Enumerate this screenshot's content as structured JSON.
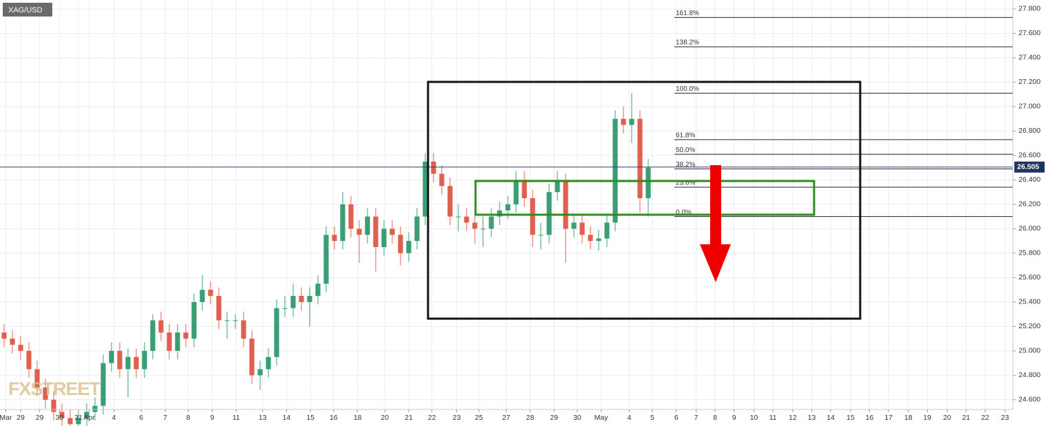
{
  "chart_data": {
    "type": "candlestick",
    "symbol": "XAG/USD",
    "watermark": "FXSTREET",
    "open": [
      25.15,
      25.1,
      25.05,
      25.0,
      24.85,
      24.7,
      24.6,
      24.5,
      24.45,
      24.4,
      24.45,
      24.5,
      24.55,
      24.9,
      25.0,
      24.85,
      24.95,
      24.85,
      25.0,
      25.25,
      25.15,
      25.0,
      25.15,
      25.1,
      25.4,
      25.5,
      25.45,
      25.25,
      25.25,
      25.25,
      25.1,
      24.8,
      24.85,
      24.95,
      25.35,
      25.35,
      25.45,
      25.4,
      25.45,
      25.55,
      25.95,
      25.9,
      26.2,
      26.0,
      25.95,
      26.1,
      25.85,
      26.0,
      25.95,
      25.8,
      25.9,
      26.1,
      26.55,
      26.45,
      26.35,
      26.1,
      26.1,
      26.05,
      26.0,
      26.0,
      26.1,
      26.15,
      26.2,
      26.4,
      26.25,
      25.95,
      25.95,
      26.3,
      26.4,
      26.0,
      26.05,
      25.95,
      25.9,
      25.92,
      26.05,
      26.9,
      26.85,
      26.9,
      26.25
    ],
    "high": [
      25.22,
      25.17,
      25.12,
      25.07,
      24.92,
      24.77,
      24.67,
      24.57,
      24.52,
      24.52,
      24.57,
      24.62,
      24.97,
      25.07,
      25.07,
      25.02,
      25.02,
      25.07,
      25.3,
      25.32,
      25.22,
      25.22,
      25.22,
      25.47,
      25.62,
      25.57,
      25.52,
      25.32,
      25.3,
      25.32,
      25.17,
      24.92,
      25.02,
      25.42,
      25.45,
      25.55,
      25.52,
      25.52,
      25.62,
      26.02,
      26.02,
      26.3,
      26.27,
      26.07,
      26.17,
      26.17,
      26.07,
      26.07,
      26.02,
      25.97,
      26.17,
      26.62,
      26.62,
      26.52,
      26.42,
      26.2,
      26.17,
      26.12,
      26.1,
      26.17,
      26.22,
      26.27,
      26.47,
      26.47,
      26.32,
      26.05,
      26.37,
      26.47,
      26.45,
      26.12,
      26.12,
      26.02,
      25.99,
      26.12,
      26.97,
      27.0,
      27.11,
      26.97,
      26.57
    ],
    "low": [
      25.03,
      24.98,
      24.93,
      24.78,
      24.63,
      24.53,
      24.43,
      24.38,
      24.33,
      24.33,
      24.38,
      24.43,
      24.48,
      24.83,
      24.78,
      24.62,
      24.78,
      24.78,
      24.93,
      25.08,
      24.93,
      24.93,
      25.03,
      25.03,
      25.33,
      25.38,
      25.18,
      25.1,
      25.18,
      25.03,
      24.73,
      24.68,
      24.78,
      24.88,
      25.28,
      25.28,
      25.33,
      25.2,
      25.38,
      25.48,
      25.83,
      25.83,
      25.93,
      25.72,
      25.88,
      25.65,
      25.78,
      25.88,
      25.7,
      25.73,
      25.83,
      26.03,
      26.38,
      26.28,
      26.03,
      25.98,
      25.98,
      25.88,
      25.85,
      25.93,
      26.03,
      26.08,
      26.13,
      26.18,
      25.85,
      25.83,
      25.88,
      26.23,
      25.72,
      25.93,
      25.88,
      25.83,
      25.82,
      25.85,
      25.98,
      26.78,
      26.7,
      26.13,
      26.1
    ],
    "close": [
      25.1,
      25.05,
      25.0,
      24.85,
      24.7,
      24.6,
      24.5,
      24.45,
      24.4,
      24.45,
      24.5,
      24.55,
      24.9,
      25.0,
      24.85,
      24.95,
      24.85,
      25.0,
      25.25,
      25.15,
      25.0,
      25.15,
      25.1,
      25.4,
      25.5,
      25.45,
      25.25,
      25.25,
      25.25,
      25.1,
      24.8,
      24.85,
      24.95,
      25.35,
      25.35,
      25.45,
      25.4,
      25.45,
      25.55,
      25.95,
      25.9,
      26.2,
      26.0,
      25.95,
      26.1,
      25.85,
      26.0,
      25.95,
      25.8,
      25.9,
      26.1,
      26.55,
      26.45,
      26.35,
      26.1,
      26.1,
      26.05,
      26.0,
      26.0,
      26.1,
      26.15,
      26.2,
      26.4,
      26.25,
      25.95,
      25.95,
      26.3,
      26.4,
      26.0,
      26.05,
      25.95,
      25.9,
      25.92,
      26.05,
      26.9,
      26.85,
      26.9,
      26.25,
      26.5
    ],
    "up_color": "#3a9e74",
    "down_color": "#e0604f",
    "current_price": 26.505,
    "fib_levels": [
      {
        "label": "161.8%",
        "value": 27.73
      },
      {
        "label": "138.2%",
        "value": 27.49
      },
      {
        "label": "100.0%",
        "value": 27.11
      },
      {
        "label": "61.8%",
        "value": 26.73
      },
      {
        "label": "50.0%",
        "value": 26.61
      },
      {
        "label": "38.2%",
        "value": 26.49
      },
      {
        "label": "23.6%",
        "value": 26.34
      },
      {
        "label": "0.0%",
        "value": 26.1
      }
    ],
    "ylim": [
      24.52,
      27.873
    ],
    "yticks": [
      {
        "value": 24.6,
        "label": "24.600"
      },
      {
        "value": 24.8,
        "label": "24.800"
      },
      {
        "value": 25.0,
        "label": "25.000"
      },
      {
        "value": 25.2,
        "label": "25.200"
      },
      {
        "value": 25.4,
        "label": "25.400"
      },
      {
        "value": 25.6,
        "label": "25.600"
      },
      {
        "value": 25.8,
        "label": "25.800"
      },
      {
        "value": 26.0,
        "label": "26.000"
      },
      {
        "value": 26.2,
        "label": "26.200"
      },
      {
        "value": 26.4,
        "label": "26.400"
      },
      {
        "value": 26.6,
        "label": "26.600"
      },
      {
        "value": 26.8,
        "label": "26.800"
      },
      {
        "value": 27.0,
        "label": "27.000"
      },
      {
        "value": 27.2,
        "label": "27.200"
      },
      {
        "value": 27.4,
        "label": "27.400"
      },
      {
        "value": 27.6,
        "label": "27.600"
      },
      {
        "value": 27.8,
        "label": "27.800"
      }
    ],
    "xlim": [
      -0.5,
      122.17
    ],
    "xticks": [
      {
        "value": 0.2,
        "label": "Mar"
      },
      {
        "value": 2,
        "label": "29"
      },
      {
        "value": 4.3,
        "label": "29"
      },
      {
        "value": 6.7,
        "label": "30"
      },
      {
        "value": 9,
        "label": "31"
      },
      {
        "value": 10.3,
        "label": "Apr"
      },
      {
        "value": 13.3,
        "label": "4"
      },
      {
        "value": 16.6,
        "label": "6"
      },
      {
        "value": 19.5,
        "label": "7"
      },
      {
        "value": 22.3,
        "label": "8"
      },
      {
        "value": 25.2,
        "label": "9"
      },
      {
        "value": 28.1,
        "label": "11"
      },
      {
        "value": 31.3,
        "label": "13"
      },
      {
        "value": 34.2,
        "label": "14"
      },
      {
        "value": 37.1,
        "label": "15"
      },
      {
        "value": 39.9,
        "label": "16"
      },
      {
        "value": 42.8,
        "label": "18"
      },
      {
        "value": 46.1,
        "label": "20"
      },
      {
        "value": 49,
        "label": "21"
      },
      {
        "value": 51.8,
        "label": "22"
      },
      {
        "value": 54.8,
        "label": "23"
      },
      {
        "value": 57.5,
        "label": "25"
      },
      {
        "value": 60.8,
        "label": "27"
      },
      {
        "value": 63.7,
        "label": "28"
      },
      {
        "value": 66.6,
        "label": "29"
      },
      {
        "value": 69.4,
        "label": "30"
      },
      {
        "value": 72.3,
        "label": "May"
      },
      {
        "value": 75.7,
        "label": "4"
      },
      {
        "value": 78.5,
        "label": "5"
      },
      {
        "value": 81.4,
        "label": "6"
      },
      {
        "value": 83.8,
        "label": "7"
      },
      {
        "value": 86.1,
        "label": "8"
      },
      {
        "value": 88.4,
        "label": "9"
      },
      {
        "value": 90.8,
        "label": "10"
      },
      {
        "value": 93.1,
        "label": "11"
      },
      {
        "value": 95.5,
        "label": "12"
      },
      {
        "value": 97.8,
        "label": "13"
      },
      {
        "value": 100.1,
        "label": "14"
      },
      {
        "value": 102.5,
        "label": "15"
      },
      {
        "value": 104.8,
        "label": "16"
      },
      {
        "value": 107.1,
        "label": "17"
      },
      {
        "value": 109.5,
        "label": "18"
      },
      {
        "value": 111.8,
        "label": "19"
      },
      {
        "value": 114.2,
        "label": "20"
      },
      {
        "value": 116.5,
        "label": "21"
      },
      {
        "value": 118.8,
        "label": "22"
      },
      {
        "value": 121.2,
        "label": "23"
      }
    ],
    "grid": true
  }
}
